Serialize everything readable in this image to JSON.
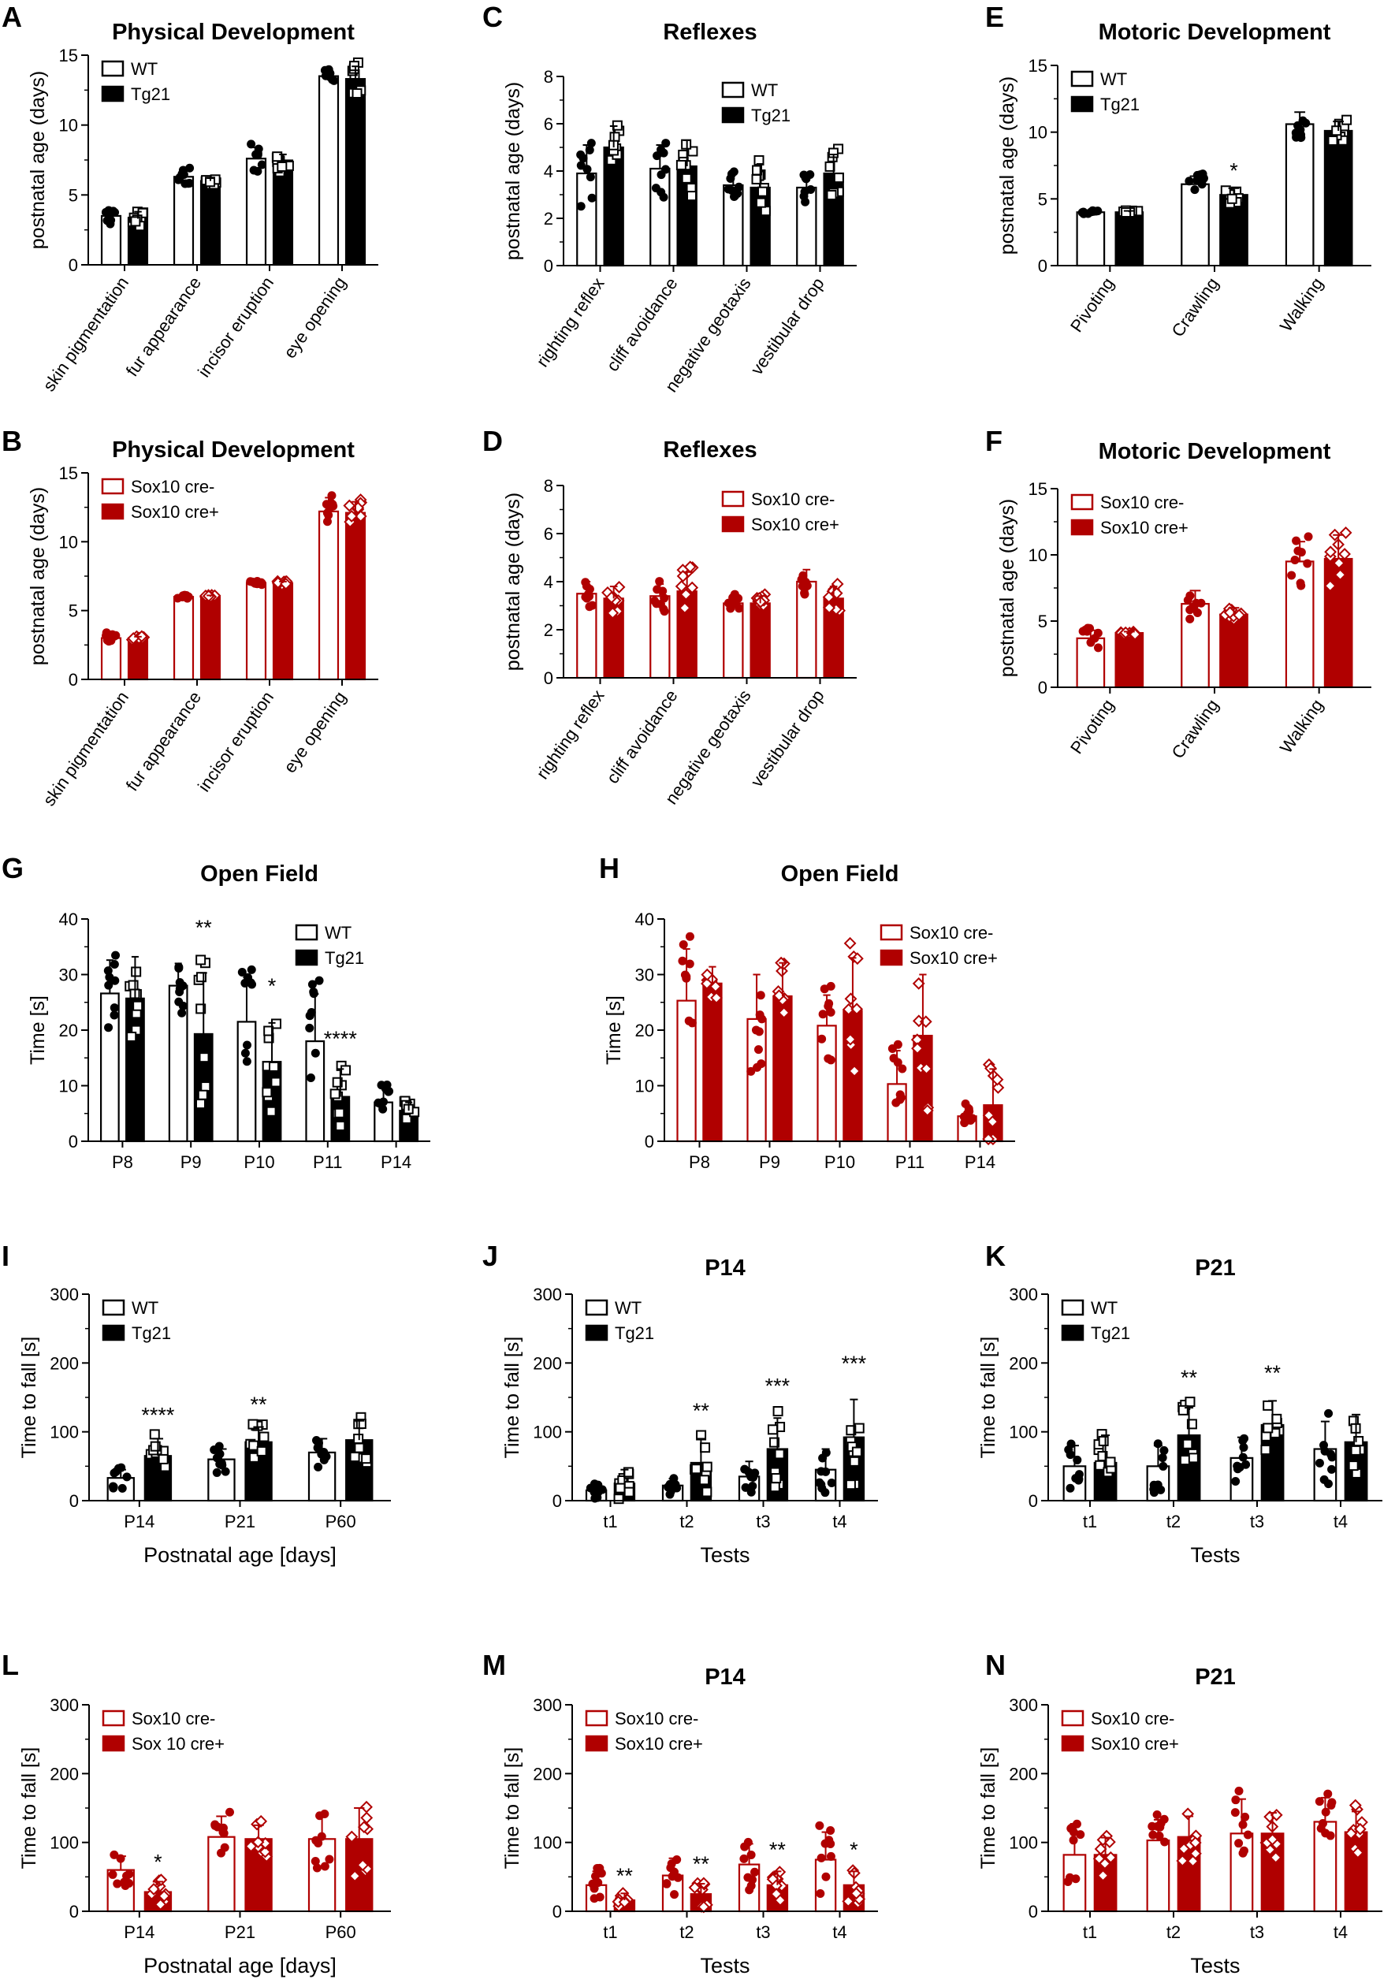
{
  "colors": {
    "black": "#000000",
    "red": "#B00000",
    "white": "#ffffff"
  },
  "chart_data": [
    {
      "id": "A",
      "letter": "A",
      "type": "bar",
      "title": "Physical Development",
      "ylabel": "postnatal age (days)",
      "xlabel": "",
      "ylim": [
        0,
        15
      ],
      "yticks": [
        0,
        5,
        10,
        15
      ],
      "categories": [
        "skin pigmentation",
        "fur appearance",
        "incisor eruption",
        "eye opening"
      ],
      "rotate_categories": true,
      "legend_position": "top-left",
      "color": "black",
      "marker": "square",
      "series": [
        {
          "name": "WT",
          "values": [
            3.5,
            6.3,
            7.6,
            13.5
          ],
          "errors": [
            0.5,
            0.5,
            0.8,
            0.4
          ]
        },
        {
          "name": "Tg21",
          "values": [
            3.3,
            6.0,
            7.3,
            13.3
          ],
          "errors": [
            0.5,
            0.2,
            0.6,
            0.9
          ]
        }
      ],
      "significance": []
    },
    {
      "id": "C",
      "letter": "C",
      "type": "bar",
      "title": "Reflexes",
      "ylabel": "postnatal age (days)",
      "xlabel": "",
      "ylim": [
        0,
        8
      ],
      "yticks": [
        0,
        2,
        4,
        6,
        8
      ],
      "categories": [
        "righting reflex",
        "cliff avoidance",
        "negative geotaxis",
        "vestibular drop"
      ],
      "rotate_categories": true,
      "legend_position": "top-right",
      "color": "black",
      "marker": "square",
      "series": [
        {
          "name": "WT",
          "values": [
            3.9,
            4.1,
            3.4,
            3.3
          ],
          "errors": [
            1.2,
            1.0,
            0.6,
            0.5
          ]
        },
        {
          "name": "Tg21",
          "values": [
            5.0,
            4.2,
            3.3,
            3.9
          ],
          "errors": [
            0.9,
            1.1,
            1.0,
            0.8
          ]
        }
      ],
      "significance": []
    },
    {
      "id": "E",
      "letter": "E",
      "type": "bar",
      "title": "Motoric Development",
      "ylabel": "postnatal age (days)",
      "xlabel": "",
      "ylim": [
        0,
        15
      ],
      "yticks": [
        0,
        5,
        10,
        15
      ],
      "categories": [
        "Pivoting",
        "Crawling",
        "Walking"
      ],
      "rotate_categories": true,
      "legend_position": "top-left",
      "color": "black",
      "marker": "square",
      "series": [
        {
          "name": "WT",
          "values": [
            4.0,
            6.1,
            10.6
          ],
          "errors": [
            0.1,
            0.6,
            0.9
          ]
        },
        {
          "name": "Tg21",
          "values": [
            4.0,
            5.3,
            10.1
          ],
          "errors": [
            0.1,
            0.5,
            0.7
          ]
        }
      ],
      "significance": [
        {
          "category": 1,
          "label": "*"
        }
      ]
    },
    {
      "id": "B",
      "letter": "B",
      "type": "bar",
      "title": "Physical Development",
      "ylabel": "postnatal age (days)",
      "xlabel": "",
      "ylim": [
        0,
        15
      ],
      "yticks": [
        0,
        5,
        10,
        15
      ],
      "categories": [
        "skin pigmentation",
        "fur appearance",
        "incisor eruption",
        "eye opening"
      ],
      "rotate_categories": true,
      "legend_position": "top-left",
      "color": "red",
      "marker": "diamond",
      "series": [
        {
          "name": "Sox10 cre-",
          "values": [
            3.0,
            6.0,
            7.0,
            12.2
          ],
          "errors": [
            0.3,
            0.1,
            0.1,
            1.0
          ]
        },
        {
          "name": "Sox10 cre+",
          "values": [
            3.0,
            6.0,
            7.0,
            12.1
          ],
          "errors": [
            0.1,
            0.1,
            0.1,
            0.8
          ]
        }
      ],
      "significance": []
    },
    {
      "id": "D",
      "letter": "D",
      "type": "bar",
      "title": "Reflexes",
      "ylabel": "postnatal age (days)",
      "xlabel": "",
      "ylim": [
        0,
        8
      ],
      "yticks": [
        0,
        2,
        4,
        6,
        8
      ],
      "categories": [
        "righting reflex",
        "cliff avoidance",
        "negative geotaxis",
        "vestibular drop"
      ],
      "rotate_categories": true,
      "legend_position": "top-right",
      "color": "red",
      "marker": "diamond",
      "series": [
        {
          "name": "Sox10 cre-",
          "values": [
            3.5,
            3.4,
            3.1,
            4.0
          ],
          "errors": [
            0.5,
            0.5,
            0.3,
            0.5
          ]
        },
        {
          "name": "Sox10 cre+",
          "values": [
            3.3,
            3.6,
            3.1,
            3.3
          ],
          "errors": [
            0.5,
            0.8,
            0.3,
            0.5
          ]
        }
      ],
      "significance": []
    },
    {
      "id": "F",
      "letter": "F",
      "type": "bar",
      "title": "Motoric Development",
      "ylabel": "postnatal age (days)",
      "xlabel": "",
      "ylim": [
        0,
        15
      ],
      "yticks": [
        0,
        5,
        10,
        15
      ],
      "categories": [
        "Pivoting",
        "Crawling",
        "Walking"
      ],
      "rotate_categories": true,
      "legend_position": "top-left",
      "color": "red",
      "marker": "diamond",
      "series": [
        {
          "name": "Sox10 cre-",
          "values": [
            3.7,
            6.3,
            9.5
          ],
          "errors": [
            0.6,
            1.0,
            1.5
          ]
        },
        {
          "name": "Sox10 cre+",
          "values": [
            4.1,
            5.5,
            9.7
          ],
          "errors": [
            0.1,
            0.5,
            1.8
          ]
        }
      ],
      "significance": []
    },
    {
      "id": "G",
      "letter": "G",
      "type": "bar",
      "title": "Open Field",
      "ylabel": "Time [s]",
      "xlabel": "",
      "ylim": [
        0,
        40
      ],
      "yticks": [
        0,
        10,
        20,
        30,
        40
      ],
      "categories": [
        "P8",
        "P9",
        "P10",
        "P11",
        "P14"
      ],
      "rotate_categories": false,
      "legend_position": "top-right",
      "color": "black",
      "marker": "square",
      "series": [
        {
          "name": "WT",
          "values": [
            26.6,
            28.0,
            21.5,
            18.0,
            7.0
          ],
          "errors": [
            6.0,
            4.0,
            8.0,
            8.5,
            3.0
          ]
        },
        {
          "name": "Tg21",
          "values": [
            25.7,
            19.3,
            14.3,
            8.0,
            5.5
          ],
          "errors": [
            7.5,
            11.0,
            7.0,
            5.0,
            1.5
          ]
        }
      ],
      "significance": [
        {
          "category": 1,
          "label": "**"
        },
        {
          "category": 2,
          "label": "*"
        },
        {
          "category": 3,
          "label": "****"
        }
      ]
    },
    {
      "id": "H",
      "letter": "H",
      "type": "bar",
      "title": "Open Field",
      "ylabel": "Time [s]",
      "xlabel": "",
      "ylim": [
        0,
        40
      ],
      "yticks": [
        0,
        10,
        20,
        30,
        40
      ],
      "categories": [
        "P8",
        "P9",
        "P10",
        "P11",
        "P14"
      ],
      "rotate_categories": false,
      "legend_position": "top-right",
      "color": "red",
      "marker": "diamond",
      "series": [
        {
          "name": "Sox10 cre-",
          "values": [
            25.3,
            22.0,
            20.8,
            10.3,
            4.5
          ],
          "errors": [
            9.3,
            8.0,
            5.5,
            6.0,
            2.0
          ]
        },
        {
          "name": "Sox10 cre+",
          "values": [
            28.4,
            26.1,
            23.5,
            19.0,
            6.5
          ],
          "errors": [
            3.0,
            6.0,
            9.5,
            11.0,
            6.5
          ]
        }
      ],
      "significance": []
    },
    {
      "id": "I",
      "letter": "I",
      "type": "bar",
      "title": "",
      "ylabel": "Time to fall [s]",
      "xlabel": "Postnatal age [days]",
      "ylim": [
        0,
        300
      ],
      "yticks": [
        0,
        100,
        200,
        300
      ],
      "categories": [
        "P14",
        "P21",
        "P60"
      ],
      "rotate_categories": false,
      "legend_position": "top-left",
      "color": "black",
      "marker": "square",
      "series": [
        {
          "name": "WT",
          "values": [
            33,
            60,
            70
          ],
          "errors": [
            12,
            15,
            20
          ]
        },
        {
          "name": "Tg21",
          "values": [
            65,
            85,
            88
          ],
          "errors": [
            25,
            22,
            28
          ]
        }
      ],
      "significance": [
        {
          "category": 0,
          "label": "****"
        },
        {
          "category": 1,
          "label": "**"
        }
      ]
    },
    {
      "id": "J",
      "letter": "J",
      "type": "bar",
      "title": "P14",
      "ylabel": "Time to fall [s]",
      "xlabel": "Tests",
      "ylim": [
        0,
        300
      ],
      "yticks": [
        0,
        100,
        200,
        300
      ],
      "categories": [
        "t1",
        "t2",
        "t3",
        "t4"
      ],
      "rotate_categories": false,
      "legend_position": "top-left",
      "color": "black",
      "marker": "square",
      "series": [
        {
          "name": "WT",
          "values": [
            15,
            22,
            35,
            45
          ],
          "errors": [
            10,
            10,
            22,
            30
          ]
        },
        {
          "name": "Tg21",
          "values": [
            25,
            55,
            75,
            92
          ],
          "errors": [
            20,
            35,
            45,
            55
          ]
        }
      ],
      "significance": [
        {
          "category": 1,
          "label": "**"
        },
        {
          "category": 2,
          "label": "***"
        },
        {
          "category": 3,
          "label": "***"
        }
      ]
    },
    {
      "id": "K",
      "letter": "K",
      "type": "bar",
      "title": "P21",
      "ylabel": "Time to fall [s]",
      "xlabel": "Tests",
      "ylim": [
        0,
        300
      ],
      "yticks": [
        0,
        100,
        200,
        300
      ],
      "categories": [
        "t1",
        "t2",
        "t3",
        "t4"
      ],
      "rotate_categories": false,
      "legend_position": "top-left",
      "color": "black",
      "marker": "square",
      "series": [
        {
          "name": "WT",
          "values": [
            50,
            50,
            62,
            75
          ],
          "errors": [
            30,
            30,
            30,
            40
          ]
        },
        {
          "name": "Tg21",
          "values": [
            55,
            95,
            110,
            85
          ],
          "errors": [
            40,
            40,
            35,
            40
          ]
        }
      ],
      "significance": [
        {
          "category": 1,
          "label": "**"
        },
        {
          "category": 2,
          "label": "**"
        }
      ]
    },
    {
      "id": "L",
      "letter": "L",
      "type": "bar",
      "title": "",
      "ylabel": "Time to fall [s]",
      "xlabel": "Postnatal age [days]",
      "ylim": [
        0,
        300
      ],
      "yticks": [
        0,
        100,
        200,
        300
      ],
      "categories": [
        "P14",
        "P21",
        "P60"
      ],
      "rotate_categories": false,
      "legend_position": "top-left",
      "color": "red",
      "marker": "diamond",
      "series": [
        {
          "name": "Sox10 cre-",
          "values": [
            60,
            108,
            105
          ],
          "errors": [
            20,
            30,
            35
          ]
        },
        {
          "name": "Sox 10 cre+",
          "values": [
            28,
            105,
            105
          ],
          "errors": [
            15,
            20,
            45
          ]
        }
      ],
      "significance": [
        {
          "category": 0,
          "label": "*"
        }
      ]
    },
    {
      "id": "M",
      "letter": "M",
      "type": "bar",
      "title": "P14",
      "ylabel": "Time to fall [s]",
      "xlabel": "Tests",
      "ylim": [
        0,
        300
      ],
      "yticks": [
        0,
        100,
        200,
        300
      ],
      "categories": [
        "t1",
        "t2",
        "t3",
        "t4"
      ],
      "rotate_categories": false,
      "legend_position": "top-left",
      "color": "red",
      "marker": "diamond",
      "series": [
        {
          "name": "Sox10 cre-",
          "values": [
            38,
            52,
            68,
            75
          ],
          "errors": [
            20,
            25,
            30,
            40
          ]
        },
        {
          "name": "Sox10 cre+",
          "values": [
            16,
            25,
            38,
            38
          ],
          "errors": [
            10,
            15,
            20,
            20
          ]
        }
      ],
      "significance": [
        {
          "category": 0,
          "label": "**"
        },
        {
          "category": 1,
          "label": "**"
        },
        {
          "category": 2,
          "label": "**"
        },
        {
          "category": 3,
          "label": "*"
        }
      ]
    },
    {
      "id": "N",
      "letter": "N",
      "type": "bar",
      "title": "P21",
      "ylabel": "Time to fall [s]",
      "xlabel": "Tests",
      "ylim": [
        0,
        300
      ],
      "yticks": [
        0,
        100,
        200,
        300
      ],
      "categories": [
        "t1",
        "t2",
        "t3",
        "t4"
      ],
      "rotate_categories": false,
      "legend_position": "top-left",
      "color": "red",
      "marker": "diamond",
      "series": [
        {
          "name": "Sox10 cre-",
          "values": [
            82,
            103,
            113,
            130
          ],
          "errors": [
            45,
            30,
            50,
            35
          ]
        },
        {
          "name": "Sox10 cre+",
          "values": [
            82,
            108,
            113,
            115
          ],
          "errors": [
            25,
            30,
            30,
            30
          ]
        }
      ],
      "significance": []
    }
  ]
}
